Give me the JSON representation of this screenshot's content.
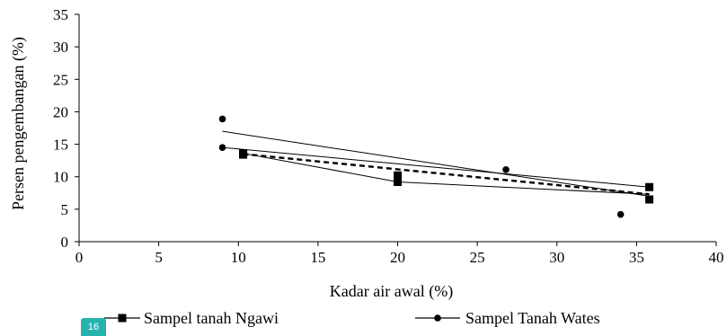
{
  "chart_data": {
    "type": "scatter",
    "xlabel": "Kadar air awal (%)",
    "ylabel": "Persen pengembangan (%)",
    "xlim": [
      0,
      40
    ],
    "ylim": [
      0,
      35
    ],
    "xticks": [
      "0",
      "5",
      "10",
      "15",
      "20",
      "25",
      "30",
      "35",
      "40"
    ],
    "yticks": [
      "0",
      "5",
      "10",
      "15",
      "20",
      "25",
      "30",
      "35"
    ],
    "grid": false,
    "legend_position": "bottom",
    "series": [
      {
        "name": "Sampel tanah Ngawi",
        "marker": "square",
        "color": "#000000",
        "x": [
          10.3,
          10.3,
          20.0,
          20.0,
          35.8,
          35.8
        ],
        "y": [
          13.4,
          13.6,
          9.2,
          10.2,
          6.5,
          8.4
        ],
        "trendline": {
          "style": "dashed",
          "x": [
            10.3,
            35.8
          ],
          "y": [
            13.5,
            7.3
          ]
        }
      },
      {
        "name": "Sampel Tanah Wates",
        "marker": "circle",
        "color": "#000000",
        "x": [
          9.0,
          9.0,
          26.8,
          34.0
        ],
        "y": [
          18.9,
          14.5,
          11.1,
          4.2
        ],
        "trendline": {
          "style": "solid",
          "x": [
            9.0,
            35.8
          ],
          "y": [
            17.0,
            7.0
          ]
        }
      }
    ],
    "connector_lines": [
      {
        "style": "solid",
        "x": [
          9.0,
          35.8
        ],
        "y": [
          14.5,
          8.4
        ]
      },
      {
        "style": "solid",
        "x": [
          10.3,
          20.0,
          35.8
        ],
        "y": [
          13.6,
          9.2,
          7.3
        ]
      }
    ]
  },
  "page_badge": "16"
}
